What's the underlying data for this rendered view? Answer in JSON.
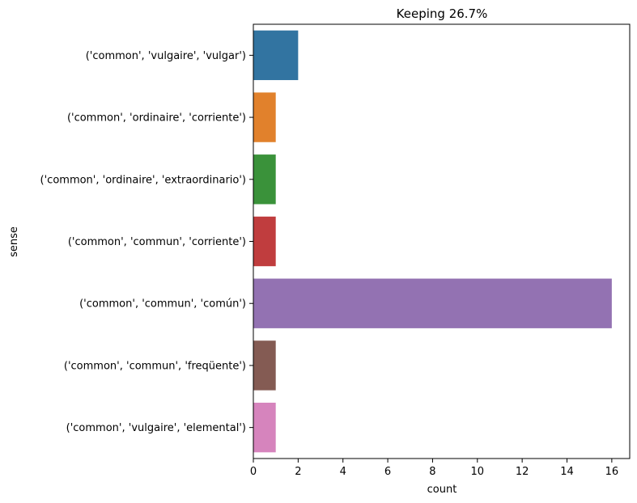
{
  "chart_data": {
    "type": "bar",
    "orientation": "horizontal",
    "title": "Keeping 26.7%",
    "xlabel": "count",
    "ylabel": "sense",
    "xlim": [
      0,
      16.8
    ],
    "xticks": [
      0,
      2,
      4,
      6,
      8,
      10,
      12,
      14,
      16
    ],
    "grid": false,
    "legend": "none",
    "categories": [
      "('common', 'vulgaire', 'vulgar')",
      "('common', 'ordinaire', 'corriente')",
      "('common', 'ordinaire', 'extraordinario')",
      "('common', 'commun', 'corriente')",
      "('common', 'commun', 'común')",
      "('common', 'commun', 'freqüente')",
      "('common', 'vulgaire', 'elemental')"
    ],
    "values": [
      2,
      1,
      1,
      1,
      16,
      1,
      1
    ],
    "colors": [
      "#3274a1",
      "#e1812c",
      "#3a923a",
      "#c03d3e",
      "#9372b2",
      "#845b53",
      "#d684bd"
    ]
  }
}
